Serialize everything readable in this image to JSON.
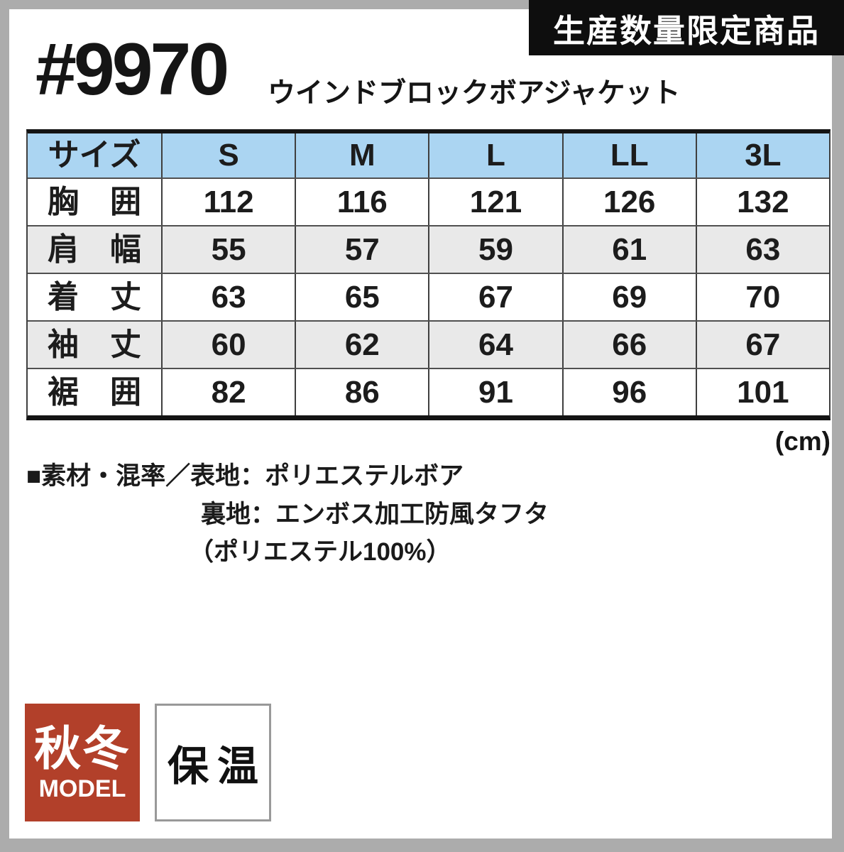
{
  "limited_badge": {
    "label": "生産数量限定商品"
  },
  "product": {
    "code": "#9970",
    "name": "ウインドブロックボアジャケット"
  },
  "size_table": {
    "header": [
      "サイズ",
      "S",
      "M",
      "L",
      "LL",
      "3L"
    ],
    "rows": [
      {
        "label": [
          "胸",
          "囲"
        ],
        "values": [
          "112",
          "116",
          "121",
          "126",
          "132"
        ]
      },
      {
        "label": [
          "肩",
          "幅"
        ],
        "values": [
          "55",
          "57",
          "59",
          "61",
          "63"
        ]
      },
      {
        "label": [
          "着",
          "丈"
        ],
        "values": [
          "63",
          "65",
          "67",
          "69",
          "70"
        ]
      },
      {
        "label": [
          "袖",
          "丈"
        ],
        "values": [
          "60",
          "62",
          "64",
          "66",
          "67"
        ]
      },
      {
        "label": [
          "裾",
          "囲"
        ],
        "values": [
          "82",
          "86",
          "91",
          "96",
          "101"
        ]
      }
    ],
    "unit": "(cm)"
  },
  "material": {
    "line1": "■素材・混率／表地：ポリエステルボア",
    "line2": "裏地：エンボス加工防風タフタ",
    "line3": "（ポリエステル100%）"
  },
  "badges": {
    "season": {
      "title": "秋冬",
      "subtitle": "MODEL"
    },
    "feature": {
      "label": "保温"
    }
  },
  "colors": {
    "header_blue": "#abd5f2",
    "row_alt_gray": "#e9e9e9",
    "limited_badge_black": "#0e0e0e",
    "season_badge_red": "#b2402a",
    "photo_edge_gray": "#acacac",
    "text": "#181818"
  }
}
